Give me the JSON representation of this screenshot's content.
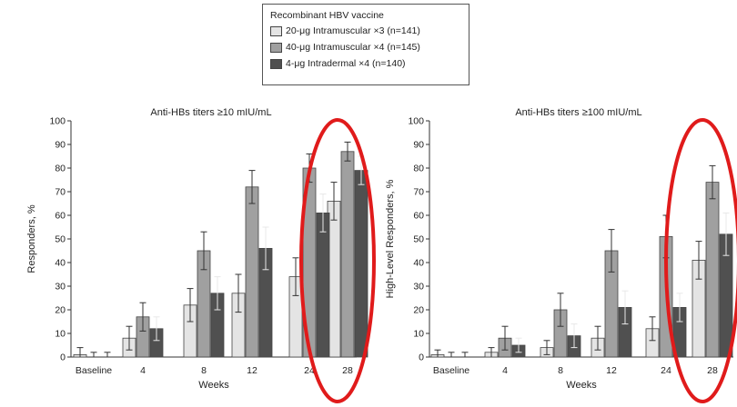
{
  "legend": {
    "title": "Recombinant HBV vaccine",
    "entries": [
      {
        "label": "20-μg Intramuscular ×3 (n=141)",
        "color": "#e4e4e4"
      },
      {
        "label": "40-μg Intramuscular ×4 (n=145)",
        "color": "#a0a0a0"
      },
      {
        "label": "4-μg Intradermal ×4 (n=140)",
        "color": "#505050"
      }
    ]
  },
  "highlight_color": "#e01b1b",
  "chart_data": [
    {
      "type": "bar",
      "title": "Anti-HBs titers ≥10 mIU/mL",
      "xlabel": "Weeks",
      "ylabel": "Responders, %",
      "ylim": [
        0,
        100
      ],
      "yticks": [
        0,
        10,
        20,
        30,
        40,
        50,
        60,
        70,
        80,
        90,
        100
      ],
      "categories": [
        "Baseline",
        "4",
        "8",
        "12",
        "24",
        "28"
      ],
      "series": [
        {
          "name": "20-μg Intramuscular ×3 (n=141)",
          "values": [
            1,
            8,
            22,
            27,
            34,
            66
          ],
          "err": [
            3,
            5,
            7,
            8,
            8,
            8
          ]
        },
        {
          "name": "40-μg Intramuscular ×4 (n=145)",
          "values": [
            0,
            17,
            45,
            72,
            80,
            87
          ],
          "err": [
            2,
            6,
            8,
            7,
            6,
            4
          ]
        },
        {
          "name": "4-μg Intradermal ×4 (n=140)",
          "values": [
            0,
            12,
            27,
            46,
            61,
            79
          ],
          "err": [
            2,
            5,
            7,
            9,
            8,
            6
          ]
        }
      ],
      "highlight": "28",
      "grid": false
    },
    {
      "type": "bar",
      "title": "Anti-HBs titers ≥100 mIU/mL",
      "xlabel": "Weeks",
      "ylabel": "High-Level Responders, %",
      "ylim": [
        0,
        100
      ],
      "yticks": [
        0,
        10,
        20,
        30,
        40,
        50,
        60,
        70,
        80,
        90,
        100
      ],
      "categories": [
        "Baseline",
        "4",
        "8",
        "12",
        "24",
        "28"
      ],
      "series": [
        {
          "name": "20-μg Intramuscular ×3 (n=141)",
          "values": [
            1,
            2,
            4,
            8,
            12,
            41
          ],
          "err": [
            2,
            2,
            3,
            5,
            5,
            8
          ]
        },
        {
          "name": "40-μg Intramuscular ×4 (n=145)",
          "values": [
            0,
            8,
            20,
            45,
            51,
            74
          ],
          "err": [
            2,
            5,
            7,
            9,
            9,
            7
          ]
        },
        {
          "name": "4-μg Intradermal ×4 (n=140)",
          "values": [
            0,
            5,
            9,
            21,
            21,
            52
          ],
          "err": [
            2,
            3,
            5,
            7,
            6,
            9
          ]
        }
      ],
      "highlight": "28",
      "grid": false
    }
  ]
}
